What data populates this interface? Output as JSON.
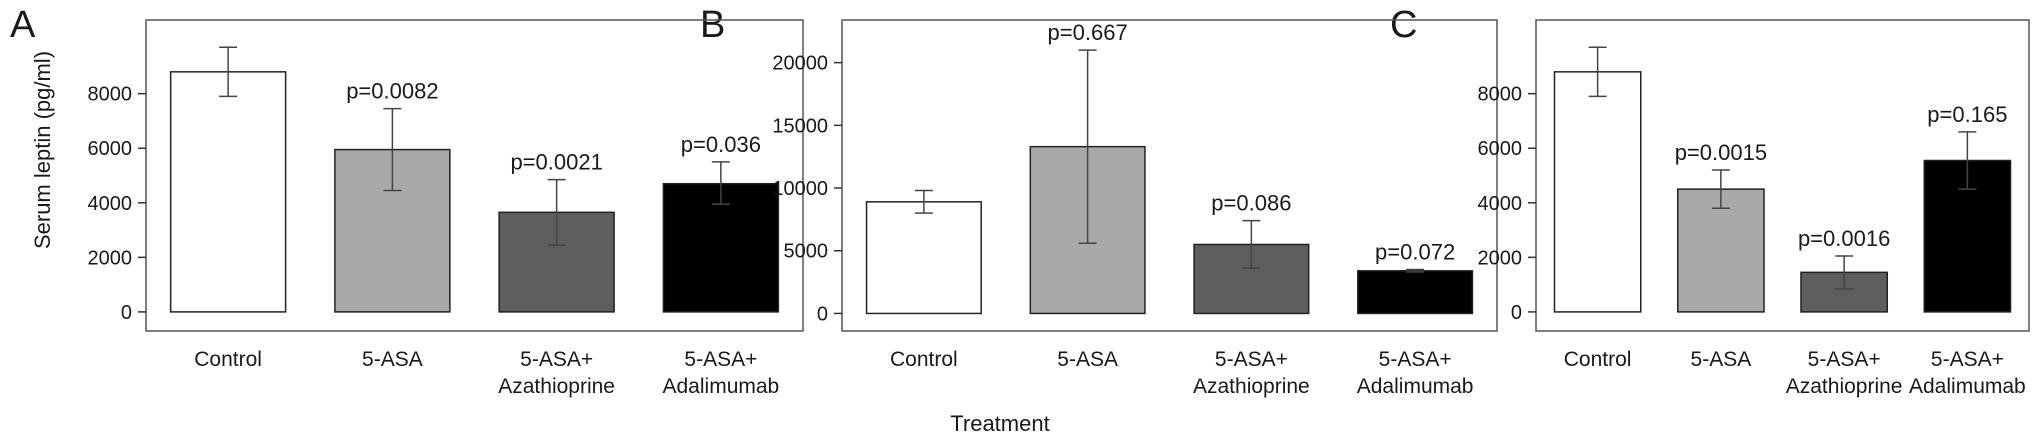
{
  "figure": {
    "panel_letters": [
      "A",
      "B",
      "C"
    ],
    "y_axis_label": "Serum leptin (pg/ml)",
    "x_axis_label": "Treatment"
  },
  "colors": {
    "Control": "#ffffff",
    "5-ASA": "#a9a9a9",
    "5-ASA+ Azathioprine": "#5e5e5e",
    "5-ASA+ Adalimumab": "#000000"
  },
  "chart_data": [
    {
      "type": "bar",
      "panel": "A",
      "categories": [
        "Control",
        "5-ASA",
        "5-ASA+ Azathioprine",
        "5-ASA+ Adalimumab"
      ],
      "values": [
        8800,
        5950,
        3650,
        4700
      ],
      "error_low": [
        7900,
        4450,
        2450,
        3950
      ],
      "error_high": [
        9700,
        7450,
        4850,
        5500
      ],
      "annotations": [
        "",
        "p=0.0082",
        "p=0.0021",
        "p=0.036"
      ],
      "ylim": [
        -700,
        10700
      ],
      "yticks": [
        0,
        2000,
        4000,
        6000,
        8000
      ],
      "ylabel": "Serum leptin (pg/ml)",
      "xlabel": ""
    },
    {
      "type": "bar",
      "panel": "B",
      "categories": [
        "Control",
        "5-ASA",
        "5-ASA+ Azathioprine",
        "5-ASA+ Adalimumab"
      ],
      "values": [
        8900,
        13300,
        5500,
        3400
      ],
      "error_low": [
        8000,
        5600,
        3600,
        3300
      ],
      "error_high": [
        9800,
        21000,
        7400,
        3500
      ],
      "annotations": [
        "",
        "p=0.667",
        "p=0.086",
        "p=0.072"
      ],
      "ylim": [
        -1400,
        23400
      ],
      "yticks": [
        0,
        5000,
        10000,
        15000,
        20000
      ],
      "ylabel": "",
      "xlabel": "Treatment"
    },
    {
      "type": "bar",
      "panel": "C",
      "categories": [
        "Control",
        "5-ASA",
        "5-ASA+ Azathioprine",
        "5-ASA+ Adalimumab"
      ],
      "values": [
        8800,
        4500,
        1450,
        5550
      ],
      "error_low": [
        7900,
        3800,
        850,
        4500
      ],
      "error_high": [
        9700,
        5200,
        2050,
        6600
      ],
      "annotations": [
        "",
        "p=0.0015",
        "p=0.0016",
        "p=0.165"
      ],
      "ylim": [
        -700,
        10700
      ],
      "yticks": [
        0,
        2000,
        4000,
        6000,
        8000
      ],
      "ylabel": "",
      "xlabel": ""
    }
  ]
}
